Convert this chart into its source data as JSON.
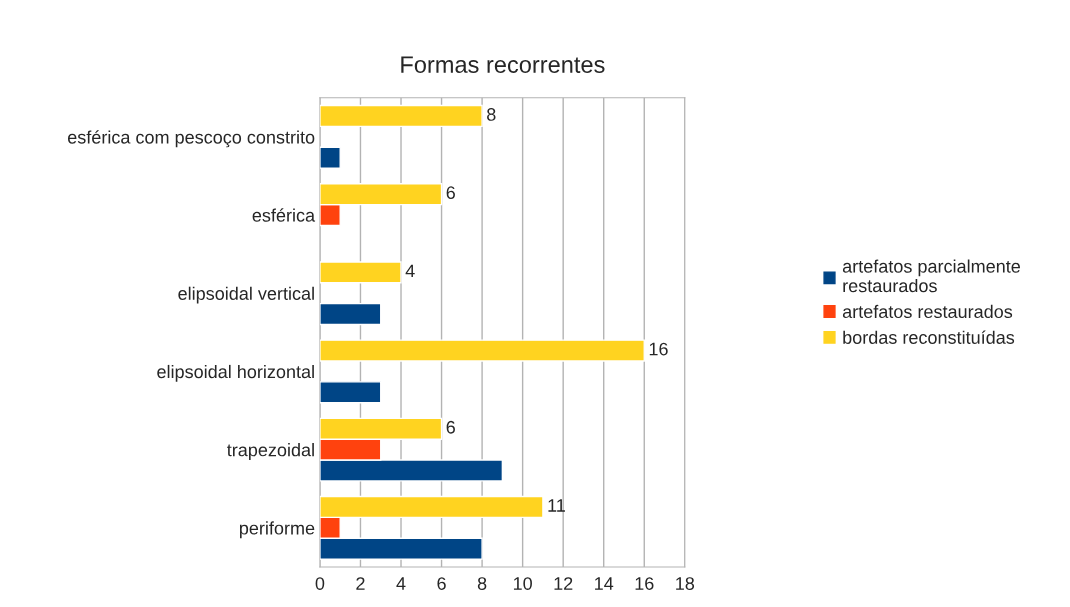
{
  "chart_data": {
    "type": "bar",
    "orientation": "horizontal",
    "title": "Formas recorrentes",
    "categories": [
      "esférica com pescoço constrito",
      "esférica",
      "elipsoidal vertical",
      "elipsoidal horizontal",
      "trapezoidal",
      "periforme"
    ],
    "series": [
      {
        "name": "artefatos parcialmente restaurados",
        "color": "#004586",
        "values": [
          1,
          null,
          3,
          3,
          9,
          8
        ]
      },
      {
        "name": "artefatos restaurados",
        "color": "#ff420e",
        "values": [
          null,
          1,
          null,
          null,
          3,
          1
        ]
      },
      {
        "name": "bordas reconstituídas",
        "color": "#ffd320",
        "values": [
          8,
          6,
          4,
          16,
          6,
          11
        ],
        "value_labels": [
          "8",
          "6",
          "4",
          "16",
          "6",
          "11"
        ]
      }
    ],
    "xlim": [
      0,
      18
    ],
    "xticks": [
      0,
      2,
      4,
      6,
      8,
      10,
      12,
      14,
      16,
      18
    ],
    "grid": "x",
    "legend": "right"
  }
}
